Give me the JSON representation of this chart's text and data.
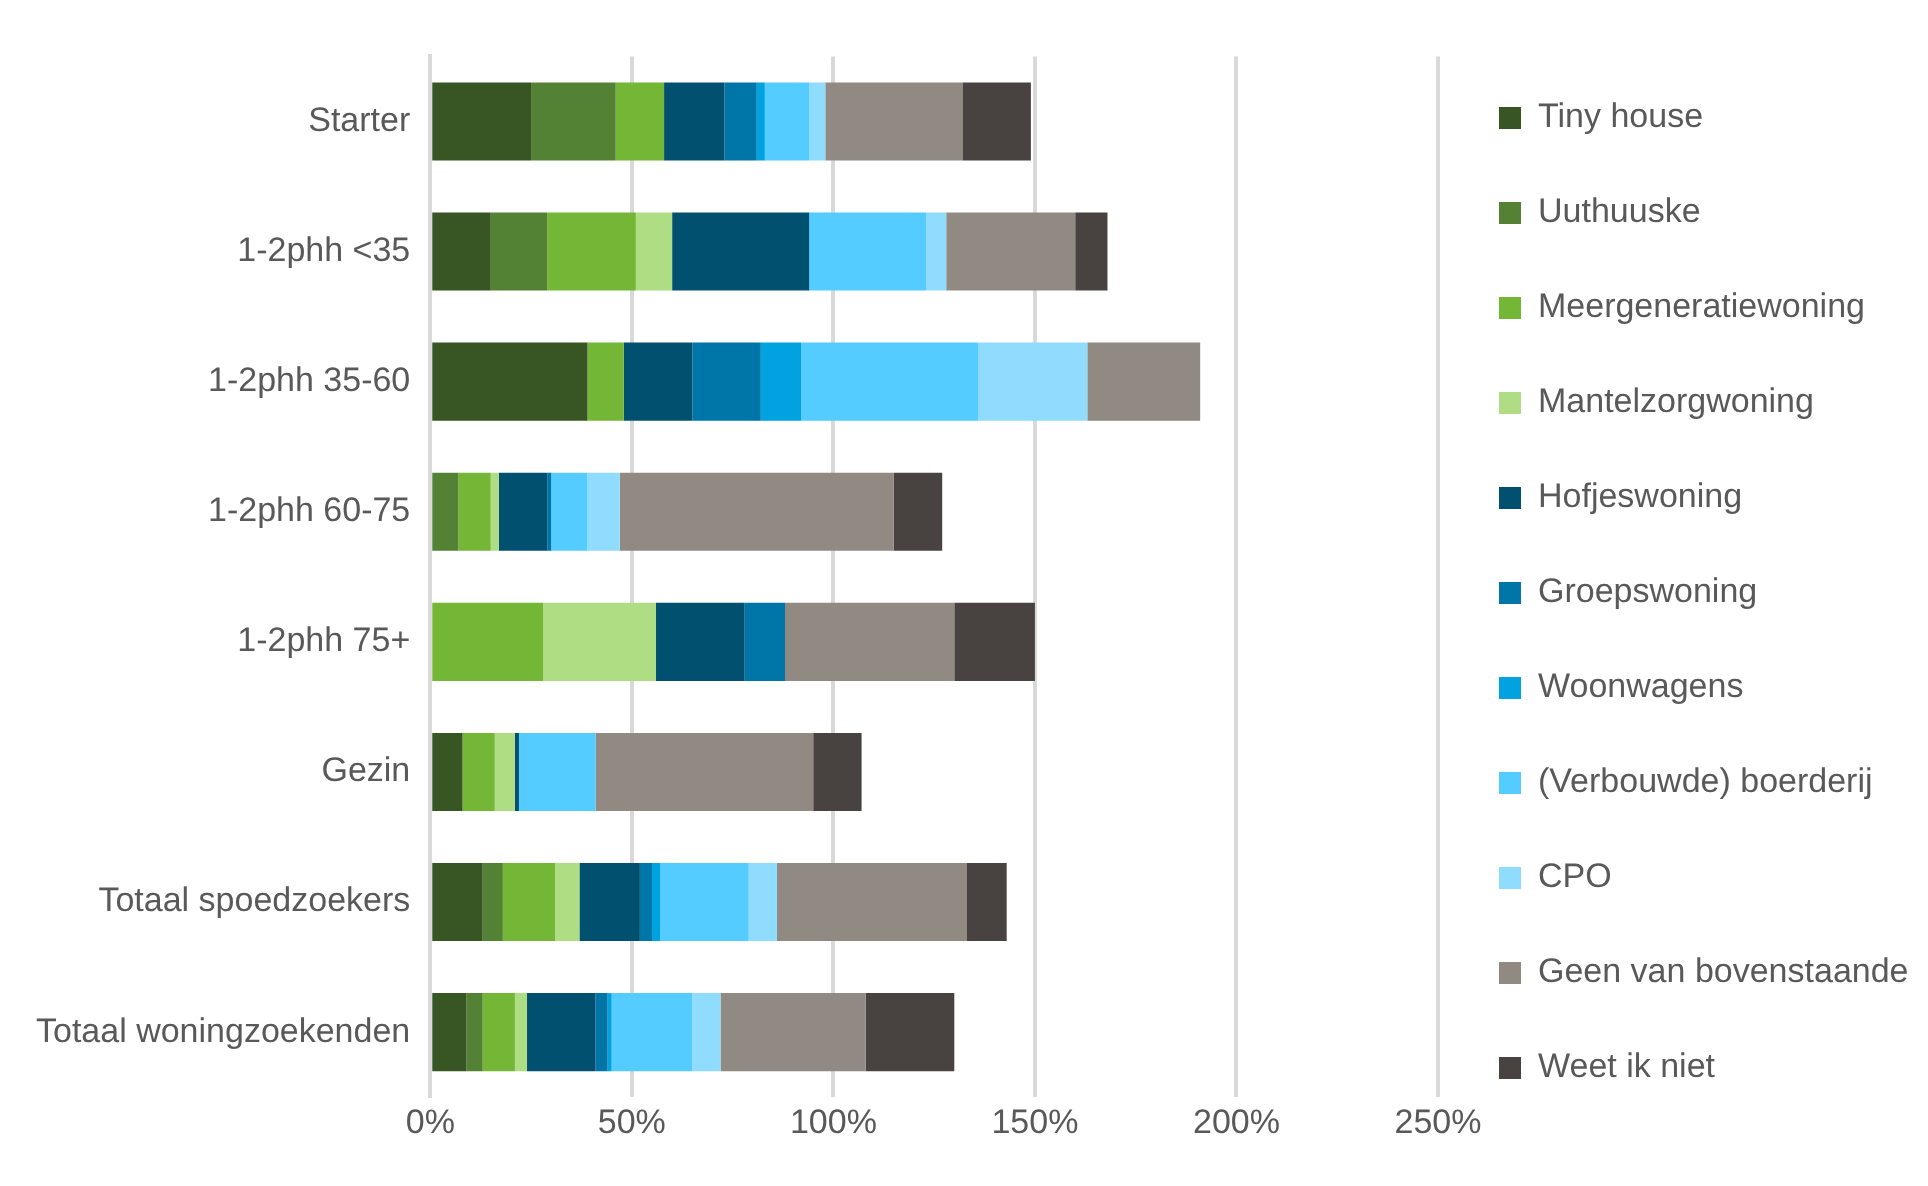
{
  "chart_data": {
    "type": "bar",
    "orientation": "horizontal",
    "stacked": true,
    "categories": [
      "Starter",
      "1-2phh <35",
      "1-2phh 35-60",
      "1-2phh 60-75",
      "1-2phh 75+",
      "Gezin",
      "Totaal spoedzoekers",
      "Totaal woningzoekenden"
    ],
    "series": [
      {
        "name": "Tiny house",
        "color": "#375623",
        "values": [
          25,
          15,
          39,
          0,
          0,
          8,
          13,
          9
        ]
      },
      {
        "name": "Uuthuuske",
        "color": "#548235",
        "values": [
          21,
          14,
          0,
          7,
          0,
          0,
          5,
          4
        ]
      },
      {
        "name": "Meergeneratiewoning",
        "color": "#74b737",
        "values": [
          12,
          22,
          9,
          8,
          28,
          8,
          13,
          8
        ]
      },
      {
        "name": "Mantelzorgwoning",
        "color": "#aedd84",
        "values": [
          0,
          9,
          0,
          2,
          28,
          5,
          6,
          3
        ]
      },
      {
        "name": "Hofjeswoning",
        "color": "#02506f",
        "values": [
          15,
          34,
          17,
          12,
          22,
          1,
          15,
          17
        ]
      },
      {
        "name": "Groepswoning",
        "color": "#0075a8",
        "values": [
          8,
          0,
          17,
          1,
          10,
          0,
          3,
          3
        ]
      },
      {
        "name": "Woonwagens",
        "color": "#00a2e0",
        "values": [
          2,
          0,
          10,
          0,
          0,
          0,
          2,
          1
        ]
      },
      {
        "name": "(Verbouwde) boerderij",
        "color": "#55ccff",
        "values": [
          11,
          29,
          44,
          9,
          0,
          19,
          22,
          20
        ]
      },
      {
        "name": "CPO",
        "color": "#8fdcff",
        "values": [
          4,
          5,
          27,
          8,
          0,
          0,
          7,
          7
        ]
      },
      {
        "name": "Geen van bovenstaande",
        "color": "#918a83",
        "values": [
          34,
          32,
          28,
          68,
          42,
          54,
          47,
          36
        ]
      },
      {
        "name": "Weet ik niet",
        "color": "#484340",
        "values": [
          17,
          8,
          0,
          12,
          20,
          12,
          10,
          22
        ]
      }
    ],
    "xlim": [
      0,
      250
    ],
    "xticks": [
      {
        "value": 0,
        "label": "0%"
      },
      {
        "value": 50,
        "label": "50%"
      },
      {
        "value": 100,
        "label": "100%"
      },
      {
        "value": 150,
        "label": "150%"
      },
      {
        "value": 200,
        "label": "200%"
      },
      {
        "value": 250,
        "label": "250%"
      }
    ],
    "grid": "x",
    "legend": "right"
  }
}
